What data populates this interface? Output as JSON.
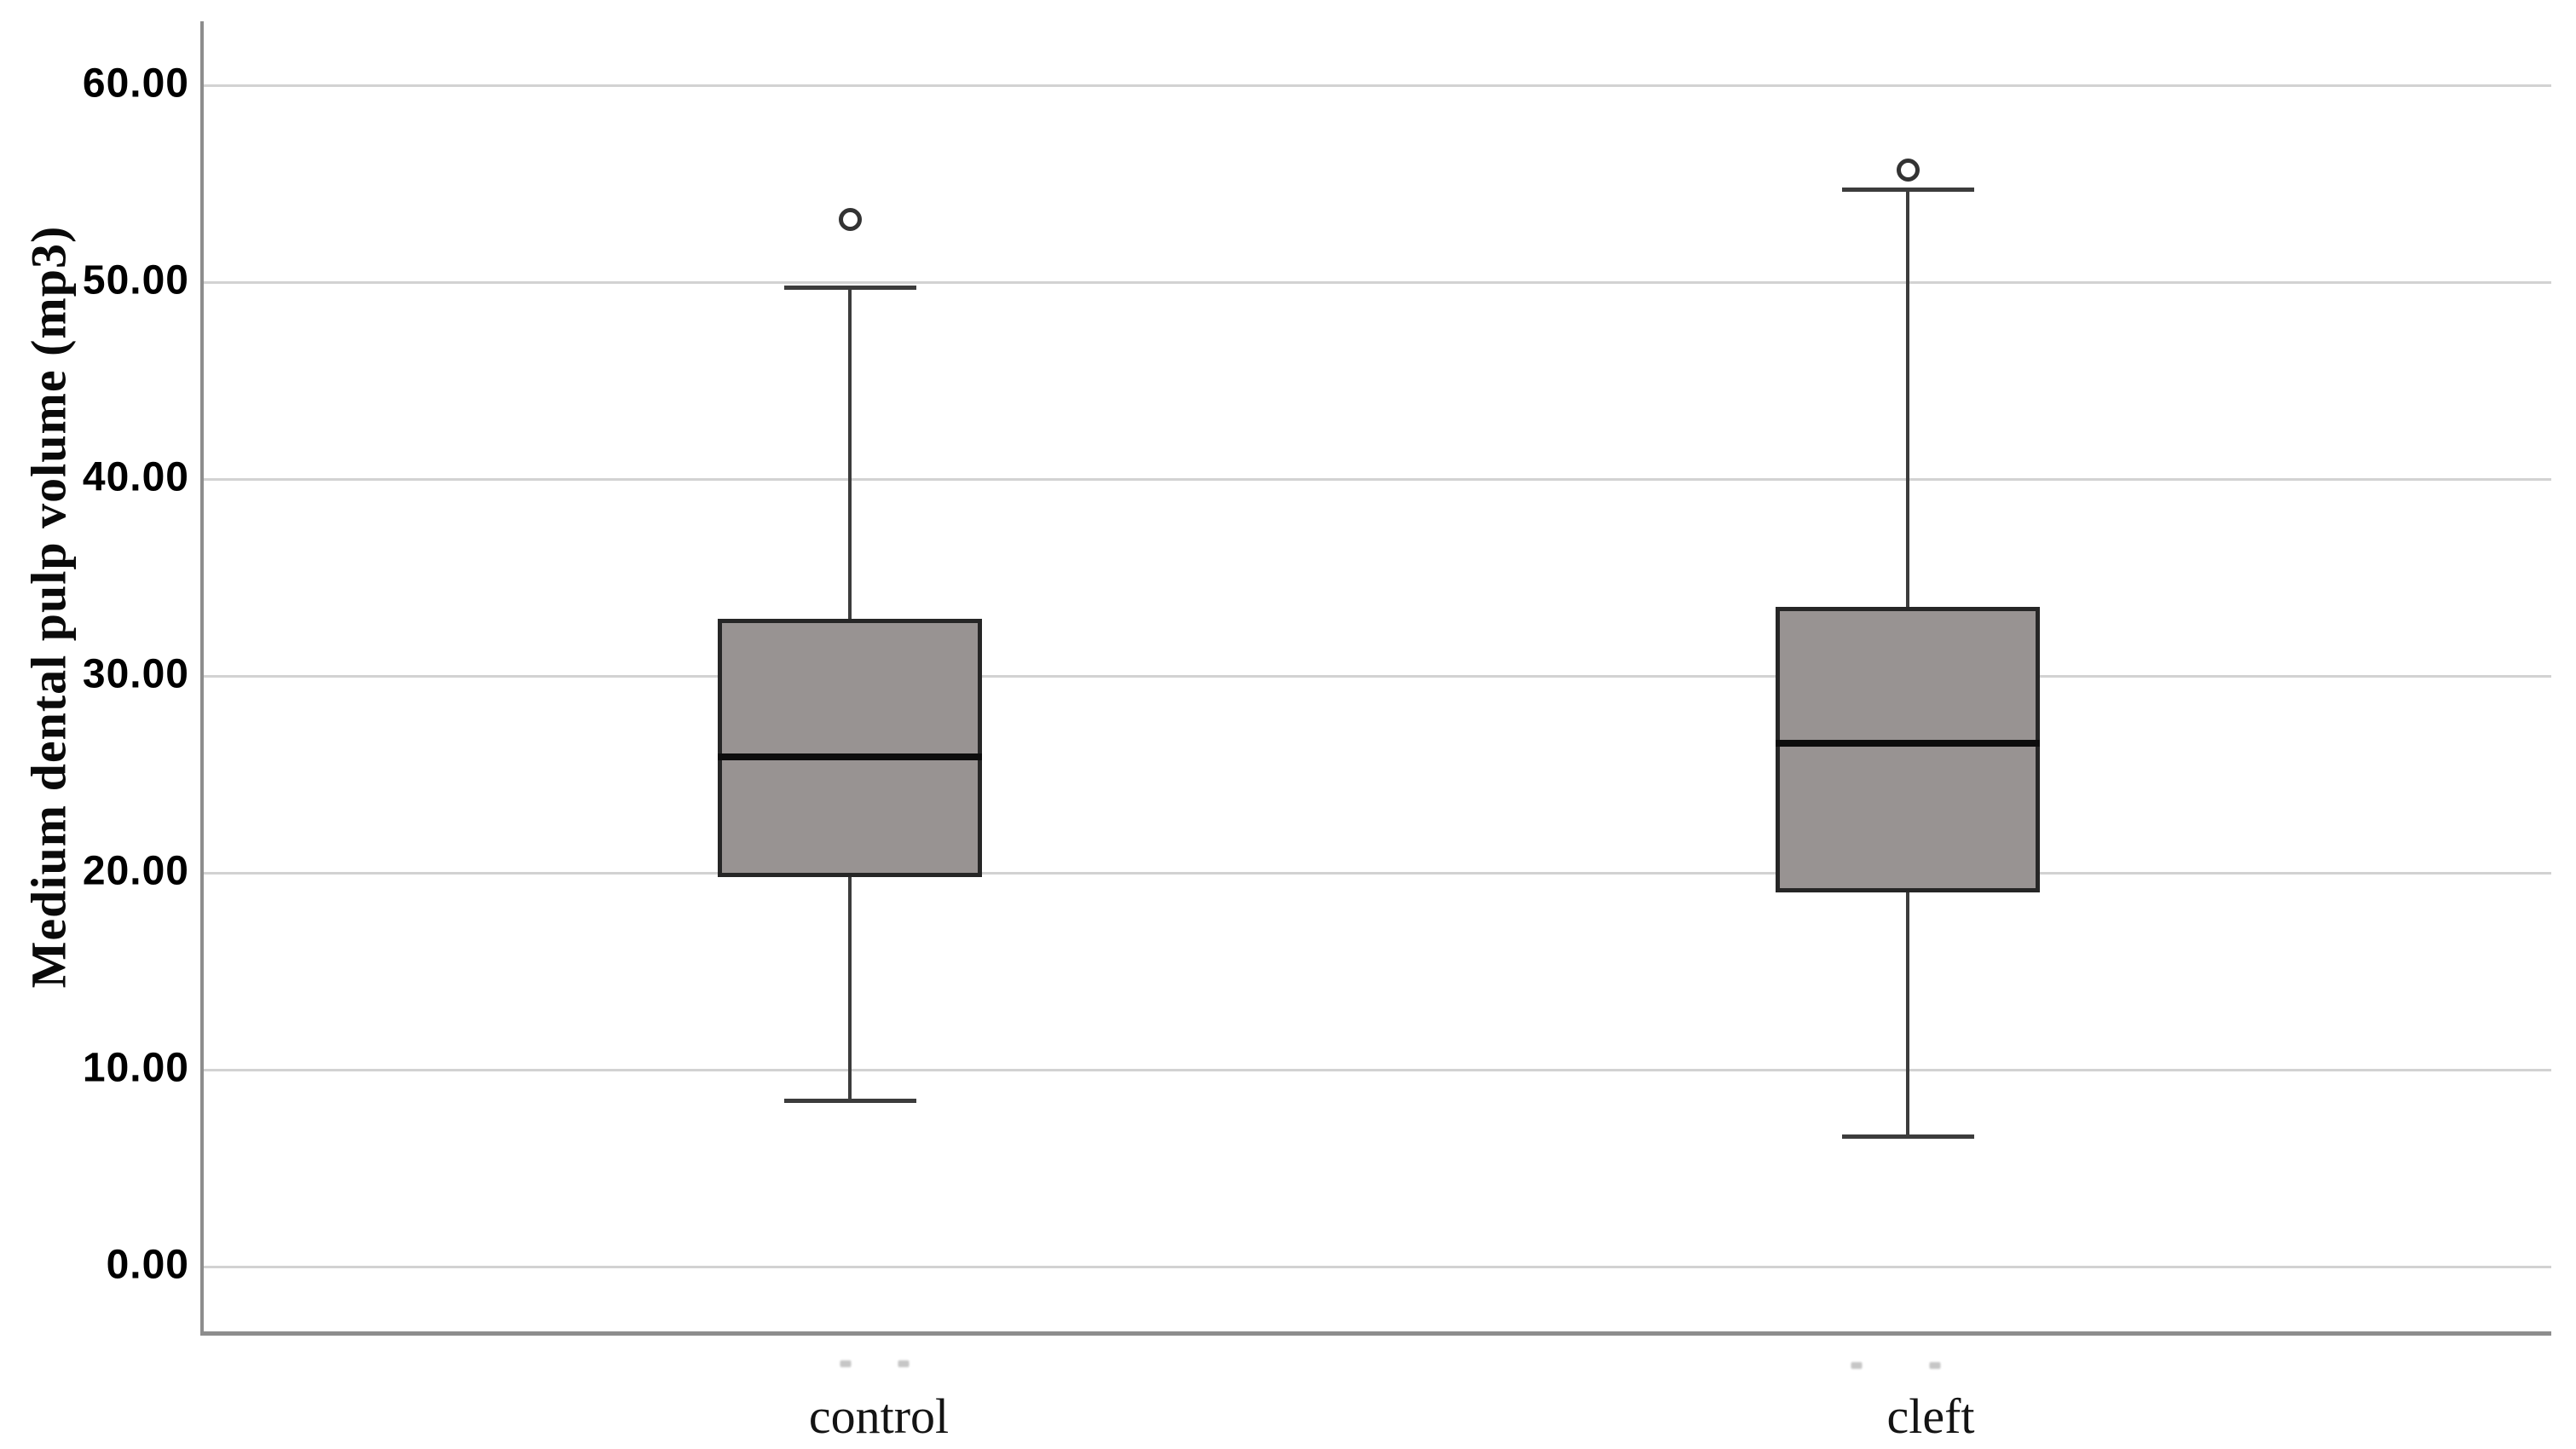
{
  "chart_data": {
    "type": "boxplot",
    "title": "",
    "xlabel": "",
    "ylabel": "Medium dental pulp volume (mp3)",
    "ylim": [
      0,
      60
    ],
    "ytick_values": [
      60,
      50,
      40,
      30,
      20,
      10,
      0
    ],
    "ytick_labels": [
      "60.00",
      "50.00",
      "40.00",
      "30.00",
      "20.00",
      "10.00",
      "0.00"
    ],
    "grid": "horizontal",
    "legend": "none",
    "categories": [
      "control",
      "cleft"
    ],
    "series": [
      {
        "name": "control",
        "whisker_low": 8.4,
        "q1": 19.8,
        "median": 25.9,
        "q3": 32.9,
        "whisker_high": 49.7,
        "outliers": [
          53.2
        ]
      },
      {
        "name": "cleft",
        "whisker_low": 6.6,
        "q1": 19.0,
        "median": 26.6,
        "q3": 33.5,
        "whisker_high": 54.7,
        "outliers": [
          55.7
        ]
      }
    ],
    "colors": {
      "background": "#ffffff",
      "box_fill": "#989392",
      "box_border": "#262626",
      "median": "#0d0d0d",
      "whisker": "#3c3c3c",
      "outlier_ring": "#333333",
      "gridline": "#d2d2d2",
      "axis": "#8d8d8d"
    }
  }
}
